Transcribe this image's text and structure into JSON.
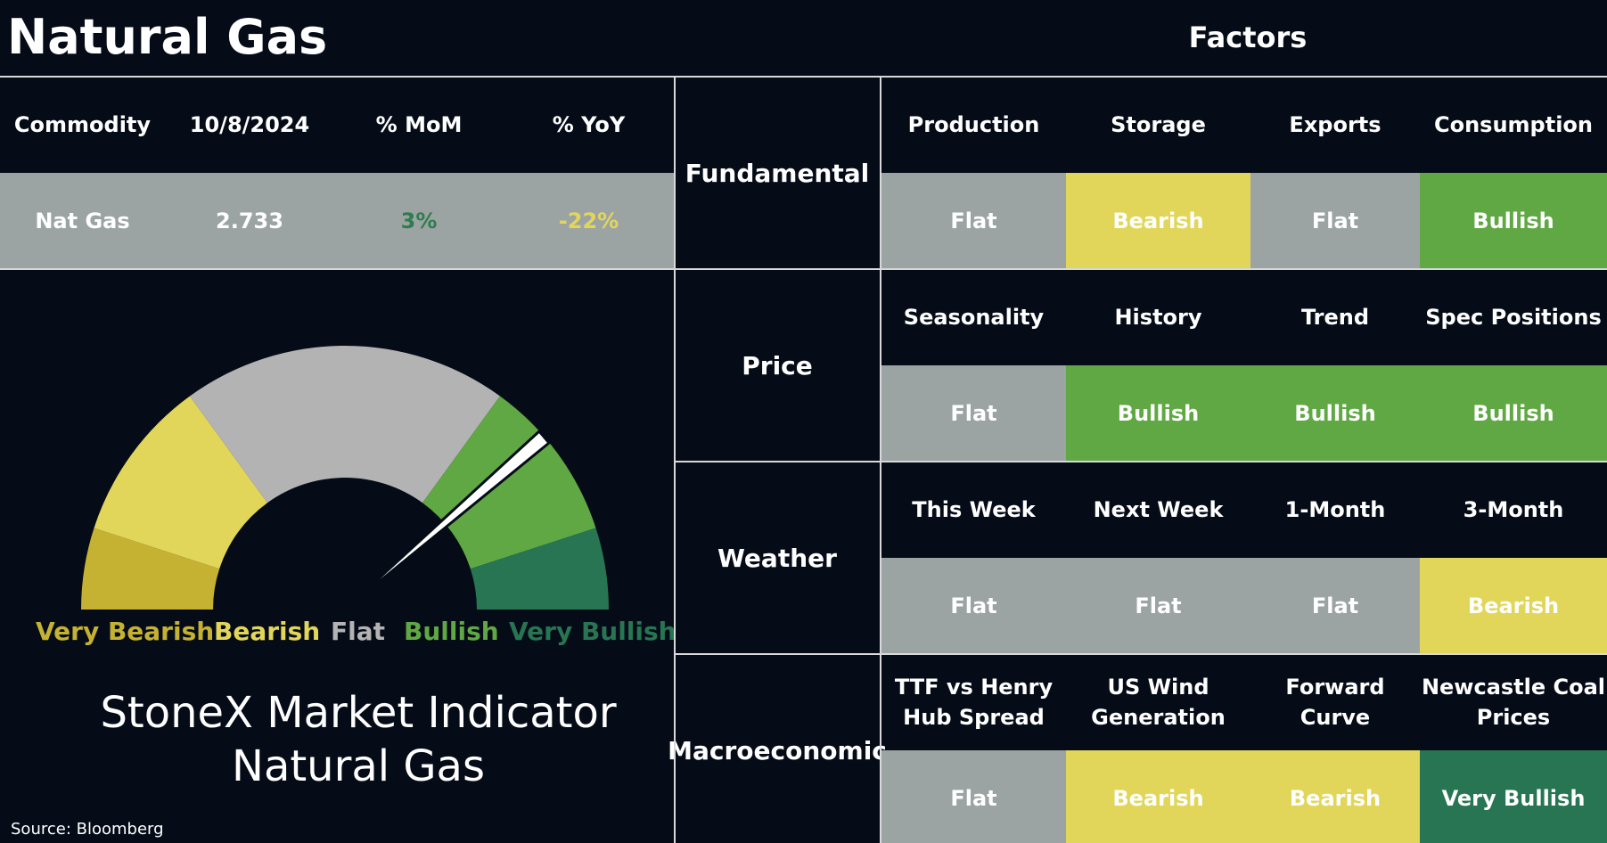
{
  "title": "Natural Gas",
  "factors_title": "Factors",
  "commodity_table": {
    "headers": [
      "Commodity",
      "10/8/2024",
      "% MoM",
      "% YoY"
    ],
    "row": {
      "commodity": "Nat Gas",
      "price": "2.733",
      "mom": "3%",
      "yoy": "-22%"
    },
    "colors": {
      "mom": "#2e7d4f",
      "yoy": "#e2d65a"
    }
  },
  "gauge": {
    "labels": {
      "very_bearish": "Very Bearish",
      "bearish": "Bearish",
      "flat": "Flat",
      "bullish": "Bullish",
      "very_bullish": "Very Bullish"
    },
    "colors": {
      "very_bearish": "#c5b232",
      "bearish": "#e2d65a",
      "flat": "#b3b3b3",
      "bullish": "#5fa843",
      "very_bullish": "#277552"
    },
    "reading": "Bullish"
  },
  "indicator_title": {
    "line1": "StoneX Market Indicator",
    "line2": "Natural Gas"
  },
  "source": "Source: Bloomberg",
  "factor_groups": [
    {
      "category": "Fundamental",
      "factors": [
        {
          "name": "Production",
          "value": "Flat"
        },
        {
          "name": "Storage",
          "value": "Bearish"
        },
        {
          "name": "Exports",
          "value": "Flat"
        },
        {
          "name": "Consumption",
          "value": "Bullish"
        }
      ]
    },
    {
      "category": "Price",
      "factors": [
        {
          "name": "Seasonality",
          "value": "Flat"
        },
        {
          "name": "History",
          "value": "Bullish"
        },
        {
          "name": "Trend",
          "value": "Bullish"
        },
        {
          "name": "Spec Positions",
          "value": "Bullish"
        }
      ]
    },
    {
      "category": "Weather",
      "factors": [
        {
          "name": "This Week",
          "value": "Flat"
        },
        {
          "name": "Next Week",
          "value": "Flat"
        },
        {
          "name": "1-Month",
          "value": "Flat"
        },
        {
          "name": "3-Month",
          "value": "Bearish"
        }
      ]
    },
    {
      "category": "Macroeconomic",
      "factors": [
        {
          "name": "TTF vs Henry\nHub Spread",
          "value": "Flat"
        },
        {
          "name": "US Wind\nGeneration",
          "value": "Bearish"
        },
        {
          "name": "Forward\nCurve",
          "value": "Bearish"
        },
        {
          "name": "Newcastle Coal\nPrices",
          "value": "Very Bullish"
        }
      ]
    }
  ],
  "status_colors": {
    "Flat": "#9ca4a3",
    "Bearish": "#e2d65a",
    "Bullish": "#5fa843",
    "Very Bullish": "#277552",
    "Very Bearish": "#c5b232"
  }
}
